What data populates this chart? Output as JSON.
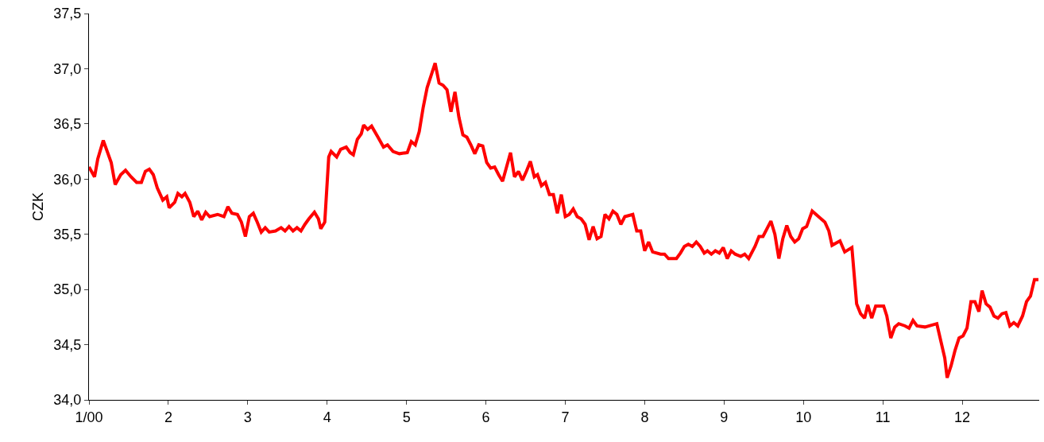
{
  "chart_data": {
    "type": "line",
    "ylabel": "CZK",
    "xlim": [
      1,
      12.97
    ],
    "xticks": [
      {
        "value": 1,
        "label": "1/00"
      },
      2,
      3,
      4,
      5,
      6,
      7,
      8,
      9,
      10,
      11,
      12
    ],
    "ylim": [
      34.0,
      37.5
    ],
    "yticks": [
      {
        "value": 34.0,
        "label": "34,0"
      },
      {
        "value": 34.5,
        "label": "34,5"
      },
      {
        "value": 35.0,
        "label": "35,0"
      },
      {
        "value": 35.5,
        "label": "35,5"
      },
      {
        "value": 36.0,
        "label": "36,0"
      },
      {
        "value": 36.5,
        "label": "36,5"
      },
      {
        "value": 37.0,
        "label": "37,0"
      },
      {
        "value": 37.5,
        "label": "37,5"
      }
    ],
    "marker": "none",
    "line_style": "solid",
    "x": [
      1.0,
      1.07,
      1.11,
      1.18,
      1.28,
      1.33,
      1.4,
      1.46,
      1.53,
      1.6,
      1.66,
      1.71,
      1.76,
      1.81,
      1.86,
      1.93,
      1.98,
      2.01,
      2.08,
      2.12,
      2.17,
      2.21,
      2.27,
      2.32,
      2.37,
      2.42,
      2.47,
      2.52,
      2.62,
      2.7,
      2.75,
      2.8,
      2.87,
      2.92,
      2.97,
      3.02,
      3.07,
      3.12,
      3.17,
      3.22,
      3.27,
      3.35,
      3.42,
      3.47,
      3.52,
      3.57,
      3.62,
      3.67,
      3.72,
      3.77,
      3.84,
      3.89,
      3.92,
      3.97,
      4.02,
      4.05,
      4.12,
      4.17,
      4.24,
      4.29,
      4.33,
      4.38,
      4.43,
      4.46,
      4.51,
      4.56,
      4.64,
      4.71,
      4.76,
      4.83,
      4.91,
      5.01,
      5.06,
      5.11,
      5.16,
      5.21,
      5.26,
      5.31,
      5.36,
      5.41,
      5.46,
      5.51,
      5.56,
      5.61,
      5.66,
      5.71,
      5.76,
      5.81,
      5.86,
      5.91,
      5.96,
      6.01,
      6.06,
      6.11,
      6.16,
      6.21,
      6.26,
      6.31,
      6.36,
      6.41,
      6.46,
      6.51,
      6.56,
      6.61,
      6.65,
      6.7,
      6.75,
      6.8,
      6.85,
      6.9,
      6.95,
      7.0,
      7.05,
      7.1,
      7.15,
      7.2,
      7.25,
      7.3,
      7.35,
      7.4,
      7.45,
      7.5,
      7.55,
      7.6,
      7.65,
      7.7,
      7.75,
      7.85,
      7.9,
      7.95,
      8.0,
      8.05,
      8.1,
      8.2,
      8.25,
      8.3,
      8.4,
      8.45,
      8.5,
      8.55,
      8.6,
      8.65,
      8.7,
      8.75,
      8.79,
      8.84,
      8.89,
      8.94,
      8.99,
      9.04,
      9.09,
      9.14,
      9.21,
      9.26,
      9.31,
      9.39,
      9.44,
      9.49,
      9.59,
      9.64,
      9.69,
      9.74,
      9.79,
      9.84,
      9.89,
      9.94,
      9.99,
      10.04,
      10.11,
      10.19,
      10.27,
      10.32,
      10.36,
      10.46,
      10.52,
      10.61,
      10.67,
      10.72,
      10.77,
      10.81,
      10.86,
      10.91,
      11.01,
      11.05,
      11.1,
      11.15,
      11.2,
      11.28,
      11.33,
      11.38,
      11.43,
      11.53,
      11.68,
      11.78,
      11.81,
      11.86,
      11.91,
      11.96,
      12.01,
      12.06,
      12.11,
      12.16,
      12.21,
      12.25,
      12.3,
      12.35,
      12.4,
      12.45,
      12.5,
      12.55,
      12.6,
      12.65,
      12.7,
      12.76,
      12.81,
      12.86,
      12.91,
      12.96
    ],
    "series": [
      {
        "color": "#ff0000",
        "values": [
          36.11,
          36.02,
          36.18,
          36.35,
          36.15,
          35.95,
          36.04,
          36.08,
          36.02,
          35.97,
          35.97,
          36.07,
          36.09,
          36.04,
          35.92,
          35.81,
          35.84,
          35.74,
          35.79,
          35.87,
          35.84,
          35.87,
          35.79,
          35.66,
          35.71,
          35.63,
          35.7,
          35.66,
          35.68,
          35.66,
          35.75,
          35.69,
          35.68,
          35.61,
          35.48,
          35.66,
          35.69,
          35.61,
          35.52,
          35.56,
          35.52,
          35.53,
          35.56,
          35.53,
          35.57,
          35.53,
          35.56,
          35.53,
          35.59,
          35.64,
          35.7,
          35.64,
          35.55,
          35.61,
          36.2,
          36.25,
          36.2,
          36.27,
          36.29,
          36.24,
          36.22,
          36.36,
          36.41,
          36.49,
          36.45,
          36.48,
          36.38,
          36.29,
          36.31,
          36.25,
          36.23,
          36.24,
          36.34,
          36.31,
          36.43,
          36.65,
          36.83,
          36.94,
          37.05,
          36.87,
          36.85,
          36.81,
          36.61,
          36.79,
          36.56,
          36.4,
          36.38,
          36.31,
          36.23,
          36.31,
          36.3,
          36.15,
          36.1,
          36.11,
          36.04,
          35.98,
          36.11,
          36.24,
          36.02,
          36.07,
          35.99,
          36.07,
          36.16,
          36.02,
          36.04,
          35.94,
          35.97,
          35.86,
          35.86,
          35.69,
          35.86,
          35.66,
          35.68,
          35.73,
          35.66,
          35.64,
          35.59,
          35.45,
          35.57,
          35.46,
          35.48,
          35.68,
          35.64,
          35.71,
          35.68,
          35.59,
          35.66,
          35.68,
          35.53,
          35.53,
          35.35,
          35.43,
          35.34,
          35.32,
          35.32,
          35.28,
          35.28,
          35.33,
          35.39,
          35.41,
          35.39,
          35.43,
          35.39,
          35.33,
          35.35,
          35.32,
          35.35,
          35.33,
          35.38,
          35.28,
          35.35,
          35.32,
          35.3,
          35.32,
          35.28,
          35.39,
          35.48,
          35.48,
          35.62,
          35.5,
          35.28,
          35.46,
          35.58,
          35.48,
          35.43,
          35.46,
          35.55,
          35.57,
          35.71,
          35.66,
          35.61,
          35.53,
          35.4,
          35.44,
          35.34,
          35.38,
          34.87,
          34.78,
          34.74,
          34.86,
          34.74,
          34.85,
          34.85,
          34.76,
          34.56,
          34.66,
          34.69,
          34.67,
          34.65,
          34.72,
          34.67,
          34.66,
          34.69,
          34.38,
          34.2,
          34.31,
          34.45,
          34.56,
          34.58,
          34.65,
          34.89,
          34.89,
          34.8,
          34.99,
          34.87,
          34.84,
          34.76,
          34.74,
          34.78,
          34.79,
          34.67,
          34.7,
          34.67,
          34.76,
          34.89,
          34.94,
          35.09,
          35.09
        ]
      }
    ]
  }
}
